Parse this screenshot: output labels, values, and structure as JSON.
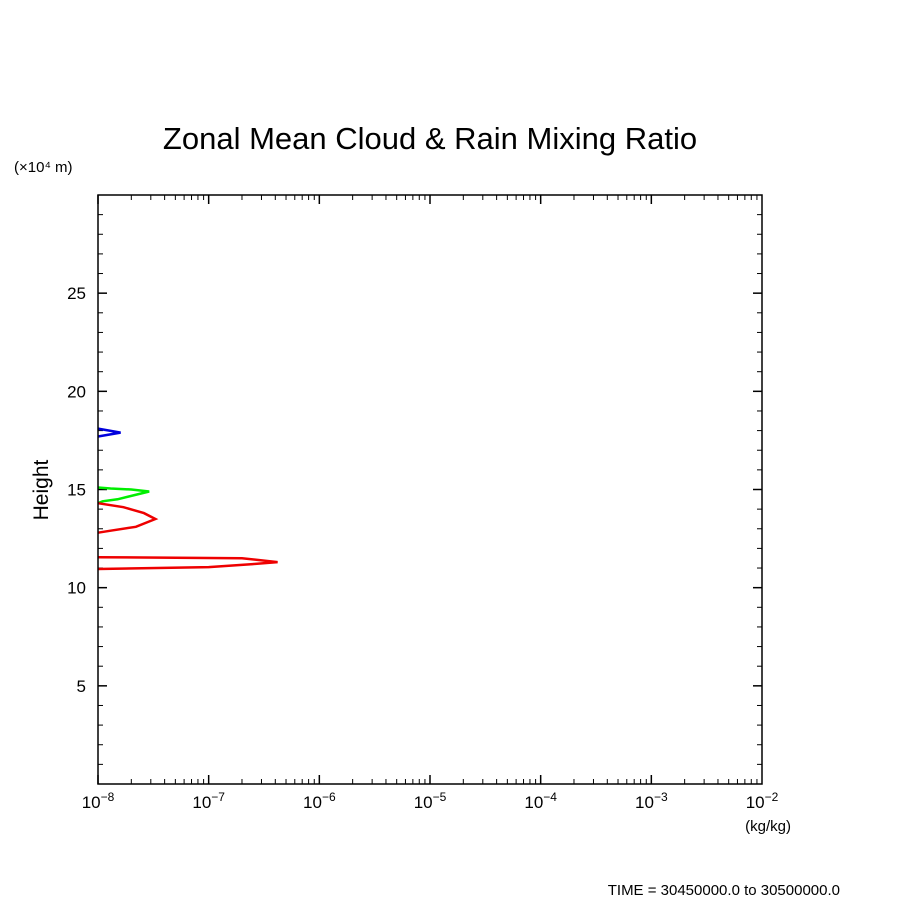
{
  "chart_data": {
    "type": "line",
    "title": "Zonal Mean Cloud & Rain Mixing Ratio",
    "ylabel": "Height",
    "y_unit_label": "(×10⁴ m)",
    "x_unit_label": "(kg/kg)",
    "xscale": "log",
    "xlim": [
      1e-08,
      0.01
    ],
    "ylim": [
      0,
      30
    ],
    "x_ticks": [
      {
        "value": 1e-08,
        "base": "10",
        "exp": "−8"
      },
      {
        "value": 1e-07,
        "base": "10",
        "exp": "−7"
      },
      {
        "value": 1e-06,
        "base": "10",
        "exp": "−6"
      },
      {
        "value": 1e-05,
        "base": "10",
        "exp": "−5"
      },
      {
        "value": 0.0001,
        "base": "10",
        "exp": "−4"
      },
      {
        "value": 0.001,
        "base": "10",
        "exp": "−3"
      },
      {
        "value": 0.01,
        "base": "10",
        "exp": "−2"
      }
    ],
    "y_ticks": [
      {
        "value": 5,
        "label": "5"
      },
      {
        "value": 10,
        "label": "10"
      },
      {
        "value": 15,
        "label": "15"
      },
      {
        "value": 20,
        "label": "20"
      },
      {
        "value": 25,
        "label": "25"
      }
    ],
    "grid": false,
    "series": [
      {
        "color": "#0000dd",
        "points": [
          [
            1e-08,
            17.7
          ],
          [
            1.6e-08,
            17.9
          ],
          [
            1e-08,
            18.1
          ]
        ]
      },
      {
        "color": "#00ee00",
        "points": [
          [
            1e-08,
            14.3
          ],
          [
            1.1e-08,
            14.4
          ],
          [
            1.5e-08,
            14.5
          ],
          [
            2.9e-08,
            14.9
          ],
          [
            2e-08,
            15.0
          ],
          [
            1.3e-08,
            15.05
          ],
          [
            1e-08,
            15.1
          ]
        ]
      },
      {
        "color": "#ee0000",
        "points": [
          [
            1e-08,
            12.8
          ],
          [
            1.3e-08,
            12.9
          ],
          [
            2.2e-08,
            13.1
          ],
          [
            3.3e-08,
            13.5
          ],
          [
            2.6e-08,
            13.8
          ],
          [
            1.7e-08,
            14.1
          ],
          [
            1e-08,
            14.3
          ]
        ]
      },
      {
        "color": "#ee0000",
        "points": [
          [
            1e-08,
            10.95
          ],
          [
            1e-07,
            11.05
          ],
          [
            2.5e-07,
            11.2
          ],
          [
            4.2e-07,
            11.3
          ],
          [
            2e-07,
            11.5
          ],
          [
            1e-08,
            11.55
          ]
        ]
      }
    ]
  },
  "footer": {
    "time_range": "TIME = 30450000.0 to 30500000.0"
  }
}
